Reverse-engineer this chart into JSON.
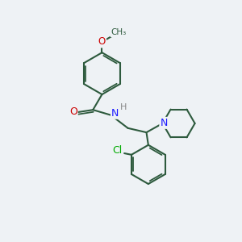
{
  "bg_color": "#eef2f5",
  "bond_color": "#2d5a3d",
  "bond_width": 1.5,
  "atom_colors": {
    "O": "#cc0000",
    "N": "#1a1aff",
    "Cl": "#00aa00",
    "H": "#888888",
    "C": "#2d5a3d"
  },
  "scale": 1.0
}
